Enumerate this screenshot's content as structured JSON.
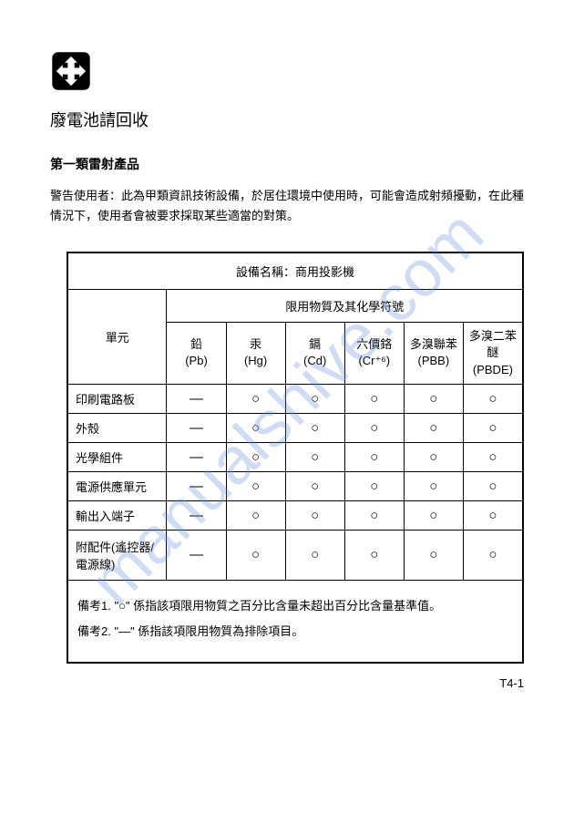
{
  "title": "廢電池請回收",
  "subtitle": "第一類雷射產品",
  "warning": "警告使用者：此為甲類資訊技術設備，於居住環境中使用時，可能會造成射頻擾動，在此種情況下，使用者會被要求採取某些適當的對策。",
  "table": {
    "device_name_label": "設備名稱：商用投影機",
    "unit_header": "單元",
    "restricted_header": "限用物質及其化學符號",
    "columns": [
      {
        "name": "鉛",
        "symbol": "(Pb)"
      },
      {
        "name": "汞",
        "symbol": "(Hg)"
      },
      {
        "name": "鎘",
        "symbol": "(Cd)"
      },
      {
        "name": "六價鉻",
        "symbol": "(Cr⁺⁶)"
      },
      {
        "name": "多溴聯苯",
        "symbol": "(PBB)"
      },
      {
        "name": "多溴二苯醚",
        "symbol": "(PBDE)"
      }
    ],
    "rows": [
      {
        "label": "印刷電路板",
        "values": [
          "—",
          "○",
          "○",
          "○",
          "○",
          "○"
        ]
      },
      {
        "label": "外殼",
        "values": [
          "—",
          "○",
          "○",
          "○",
          "○",
          "○"
        ]
      },
      {
        "label": "光學組件",
        "values": [
          "—",
          "○",
          "○",
          "○",
          "○",
          "○"
        ]
      },
      {
        "label": "電源供應單元",
        "values": [
          "—",
          "○",
          "○",
          "○",
          "○",
          "○"
        ]
      },
      {
        "label": "輸出入端子",
        "values": [
          "—",
          "○",
          "○",
          "○",
          "○",
          "○"
        ]
      },
      {
        "label": "附配件(遙控器/電源線)",
        "values": [
          "—",
          "○",
          "○",
          "○",
          "○",
          "○"
        ]
      }
    ],
    "note1": "備考1. \"○\" 係指該項限用物質之百分比含量未超出百分比含量基準值。",
    "note2": "備考2. \"—\" 係指該項限用物質為排除項目。"
  },
  "page_number": "T4-1",
  "watermark": "manualshive.com"
}
